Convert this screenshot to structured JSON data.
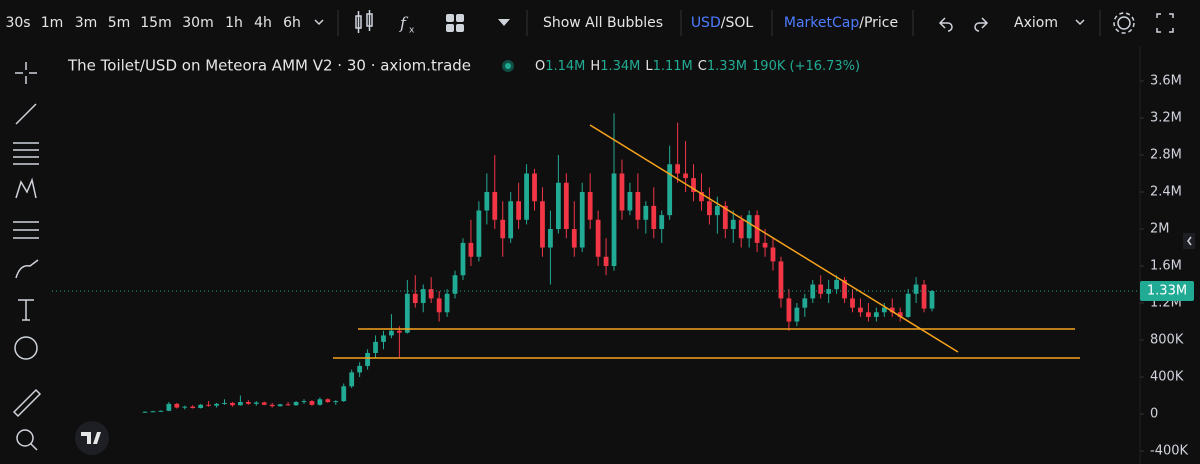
{
  "toolbar": {
    "intervals": [
      "30s",
      "1m",
      "3m",
      "5m",
      "15m",
      "30m",
      "1h",
      "4h",
      "6h"
    ],
    "active_index": 5,
    "bubbles": "Show All Bubbles",
    "currency": "USD",
    "currency_alt": "/SOL",
    "mode": "MarketCap",
    "mode_alt": "/Price",
    "layout": "Axiom"
  },
  "chart_data": {
    "type": "candlestick",
    "title": "The Toilet/USD on Meteora AMM V2 · 30 · axiom.trade",
    "ohlc": [
      {
        "key": "O",
        "value": "1.14M"
      },
      {
        "key": "H",
        "value": "1.34M"
      },
      {
        "key": "L",
        "value": "1.11M"
      },
      {
        "key": "C",
        "value": "1.33M"
      }
    ],
    "change": "190K (+16.73%)",
    "up_color": "#22ab94",
    "down_color": "#f23645",
    "open": [
      20000,
      25000,
      30000,
      35000,
      110000,
      70000,
      80000,
      65000,
      100000,
      90000,
      110000,
      120000,
      95000,
      130000,
      110000,
      125000,
      100000,
      85000,
      105000,
      95000,
      130000,
      140000,
      100000,
      160000,
      130000,
      140000,
      300000,
      450000,
      520000,
      660000,
      780000,
      850000,
      900000,
      880000,
      1300000,
      1200000,
      1350000,
      1250000,
      1100000,
      1300000,
      1500000,
      1850000,
      1700000,
      2200000,
      2400000,
      2100000,
      1900000,
      2300000,
      2100000,
      2600000,
      2300000,
      1800000,
      2000000,
      2500000,
      2000000,
      1800000,
      2400000,
      2100000,
      1700000,
      1600000,
      2600000,
      2200000,
      2400000,
      2100000,
      2250000,
      2000000,
      2150000,
      2700000,
      2600000,
      2550000,
      2400000,
      2300000,
      2150000,
      2250000,
      2000000,
      2100000,
      1900000,
      2150000,
      1850000,
      1800000,
      1650000,
      1250000,
      1000000,
      1150000,
      1250000,
      1400000,
      1300000,
      1350000,
      1450000,
      1250000,
      1150000,
      1100000,
      1050000,
      1100000,
      1150000,
      1100000,
      1050000,
      1300000,
      1400000,
      1140000
    ],
    "high": [
      30000,
      35000,
      40000,
      130000,
      120000,
      90000,
      95000,
      110000,
      140000,
      120000,
      160000,
      130000,
      200000,
      150000,
      140000,
      135000,
      120000,
      110000,
      130000,
      140000,
      160000,
      150000,
      180000,
      170000,
      150000,
      330000,
      480000,
      560000,
      700000,
      850000,
      900000,
      1080000,
      950000,
      1450000,
      1500000,
      1400000,
      1480000,
      1330000,
      1350000,
      1550000,
      1900000,
      2100000,
      2300000,
      2600000,
      2800000,
      2300000,
      2400000,
      2500000,
      2700000,
      2650000,
      2450000,
      2200000,
      2800000,
      2600000,
      2300000,
      2500000,
      2600000,
      2200000,
      1900000,
      3250000,
      2750000,
      2500000,
      2600000,
      2300000,
      2450000,
      2200000,
      2900000,
      3150000,
      2950000,
      2700000,
      2600000,
      2450000,
      2350000,
      2300000,
      2200000,
      2150000,
      2200000,
      2200000,
      2000000,
      1900000,
      1700000,
      1350000,
      1200000,
      1300000,
      1450000,
      1500000,
      1450000,
      1500000,
      1480000,
      1350000,
      1250000,
      1200000,
      1150000,
      1200000,
      1250000,
      1150000,
      1350000,
      1480000,
      1450000,
      1340000
    ],
    "low": [
      15000,
      20000,
      25000,
      30000,
      60000,
      50000,
      60000,
      60000,
      80000,
      70000,
      100000,
      80000,
      90000,
      100000,
      90000,
      95000,
      70000,
      80000,
      90000,
      90000,
      110000,
      90000,
      90000,
      120000,
      100000,
      130000,
      280000,
      400000,
      480000,
      600000,
      700000,
      820000,
      600000,
      870000,
      1150000,
      1100000,
      1200000,
      1000000,
      1050000,
      1250000,
      1450000,
      1600000,
      1650000,
      2050000,
      2000000,
      1700000,
      1850000,
      2000000,
      2050000,
      2200000,
      1700000,
      1400000,
      1950000,
      1900000,
      1700000,
      1750000,
      2000000,
      1600000,
      1500000,
      1550000,
      2100000,
      2150000,
      2000000,
      1950000,
      1900000,
      1850000,
      2100000,
      2500000,
      2400000,
      2300000,
      2200000,
      2050000,
      1950000,
      1900000,
      1850000,
      1800000,
      1800000,
      1750000,
      1700000,
      1550000,
      1150000,
      900000,
      950000,
      1050000,
      1200000,
      1250000,
      1200000,
      1300000,
      1200000,
      1100000,
      1050000,
      1000000,
      1000000,
      1050000,
      1050000,
      1000000,
      1040000,
      1200000,
      1100000,
      1110000
    ],
    "close": [
      25000,
      30000,
      35000,
      110000,
      70000,
      80000,
      65000,
      100000,
      90000,
      110000,
      120000,
      95000,
      130000,
      110000,
      125000,
      100000,
      85000,
      105000,
      95000,
      130000,
      140000,
      100000,
      160000,
      130000,
      140000,
      300000,
      450000,
      520000,
      660000,
      780000,
      850000,
      900000,
      880000,
      1300000,
      1200000,
      1350000,
      1250000,
      1100000,
      1300000,
      1500000,
      1850000,
      1700000,
      2200000,
      2400000,
      2100000,
      1900000,
      2300000,
      2100000,
      2600000,
      2300000,
      1800000,
      2000000,
      2500000,
      2000000,
      1800000,
      2400000,
      2100000,
      1700000,
      1600000,
      2600000,
      2200000,
      2400000,
      2100000,
      2250000,
      2000000,
      2150000,
      2700000,
      2600000,
      2550000,
      2400000,
      2300000,
      2150000,
      2250000,
      2000000,
      2100000,
      1900000,
      2150000,
      1850000,
      1800000,
      1650000,
      1250000,
      1000000,
      1150000,
      1250000,
      1400000,
      1300000,
      1350000,
      1450000,
      1250000,
      1150000,
      1100000,
      1050000,
      1100000,
      1150000,
      1100000,
      1050000,
      1300000,
      1400000,
      1140000,
      1330000
    ],
    "ylim": [
      -540000,
      3935000
    ],
    "yticks": [
      {
        "value": -400000,
        "label": "-400K"
      },
      0,
      {
        "value": 400000,
        "label": "400K"
      },
      {
        "value": 800000,
        "label": "800K"
      },
      {
        "value": 1200000,
        "label": "1.2M"
      },
      {
        "value": 1600000,
        "label": "1.6M"
      },
      {
        "value": 2000000,
        "label": "2M"
      },
      {
        "value": 2400000,
        "label": "2.4M"
      },
      {
        "value": 2800000,
        "label": "2.8M"
      },
      {
        "value": 3200000,
        "label": "3.2M"
      },
      {
        "value": 3600000,
        "label": "3.6M"
      }
    ],
    "last_price": {
      "value": 1330000,
      "label": "1.33M"
    }
  }
}
